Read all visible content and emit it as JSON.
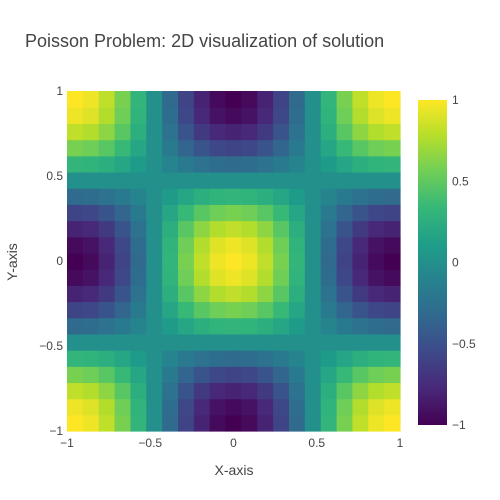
{
  "chart_data": {
    "type": "heatmap",
    "title": "Poisson Problem: 2D visualization of solution",
    "xlabel": "X-axis",
    "ylabel": "Y-axis",
    "xlim": [
      -1,
      1
    ],
    "ylim": [
      -1,
      1
    ],
    "xticks": [
      -1,
      -0.5,
      0,
      0.5,
      1
    ],
    "yticks": [
      -1,
      -0.5,
      0,
      0.5,
      1
    ],
    "xtick_labels": [
      "−1",
      "−0.5",
      "0",
      "0.5",
      "1"
    ],
    "ytick_labels": [
      "−1",
      "−0.5",
      "0",
      "0.5",
      "1"
    ],
    "grid_size": 21,
    "x": [
      -1,
      -0.9,
      -0.8,
      -0.7,
      -0.6,
      -0.5,
      -0.4,
      -0.3,
      -0.2,
      -0.1,
      0,
      0.1,
      0.2,
      0.3,
      0.4,
      0.5,
      0.6,
      0.7,
      0.8,
      0.9,
      1
    ],
    "y": [
      -1,
      -0.9,
      -0.8,
      -0.7,
      -0.6,
      -0.5,
      -0.4,
      -0.3,
      -0.2,
      -0.1,
      0,
      0.1,
      0.2,
      0.3,
      0.4,
      0.5,
      0.6,
      0.7,
      0.8,
      0.9,
      1
    ],
    "z_formula": "cos(pi*x)*cos(pi*y)",
    "colorscale": "Viridis",
    "colorscale_stops": [
      "#440154",
      "#482878",
      "#3e4989",
      "#31688e",
      "#26828e",
      "#1f9e89",
      "#35b779",
      "#6ece58",
      "#b5de2b",
      "#fde725"
    ],
    "zlim": [
      -1,
      1
    ],
    "colorbar": {
      "ticks": [
        -1,
        -0.5,
        0,
        0.5,
        1
      ],
      "tick_labels": [
        "−1",
        "−0.5",
        "0",
        "0.5",
        "1"
      ]
    },
    "grid": false,
    "legend": "colorbar-right"
  }
}
